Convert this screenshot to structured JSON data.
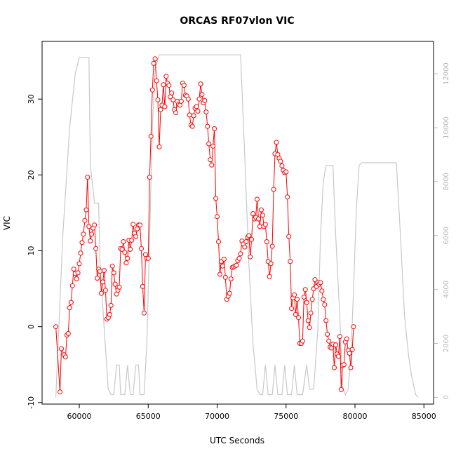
{
  "chart_data": {
    "type": "line",
    "title": "ORCAS RF07vlon VIC",
    "xlabel": "UTC Seconds",
    "ylabel": "VIC",
    "xlim": [
      57300,
      85700
    ],
    "ylim": [
      -10.2,
      37.6
    ],
    "ylim_right": [
      -250,
      13200
    ],
    "x_ticks": [
      60000,
      65000,
      70000,
      75000,
      80000,
      85000
    ],
    "y_ticks": [
      -10,
      0,
      10,
      20,
      30
    ],
    "y_ticks_right": [
      0,
      2000,
      4000,
      6000,
      8000,
      10000,
      12000
    ],
    "grid": false,
    "colors": {
      "series": "#ff0000",
      "altitude": "#c8c8c8"
    },
    "series": [
      {
        "axis": "left",
        "style": "line+circles",
        "points": [
          [
            58300,
            0.0
          ],
          [
            58600,
            -8.6
          ],
          [
            58700,
            -2.9
          ],
          [
            58900,
            -3.7
          ],
          [
            59000,
            -4.0
          ],
          [
            59100,
            -1.1
          ],
          [
            59200,
            -0.9
          ],
          [
            59300,
            2.5
          ],
          [
            59400,
            3.2
          ],
          [
            59500,
            5.4
          ],
          [
            59600,
            7.6
          ],
          [
            59700,
            7.0
          ],
          [
            59800,
            6.3
          ],
          [
            59900,
            7.1
          ],
          [
            60000,
            8.3
          ],
          [
            60100,
            9.7
          ],
          [
            60200,
            11.1
          ],
          [
            60300,
            12.2
          ],
          [
            60400,
            14.0
          ],
          [
            60500,
            15.4
          ],
          [
            60600,
            19.7
          ],
          [
            60700,
            13.2
          ],
          [
            60800,
            11.3
          ],
          [
            60900,
            12.2
          ],
          [
            61000,
            13.0
          ],
          [
            61100,
            13.4
          ],
          [
            61200,
            10.3
          ],
          [
            61300,
            6.4
          ],
          [
            61400,
            7.6
          ],
          [
            61500,
            7.3
          ],
          [
            61600,
            4.4
          ],
          [
            61700,
            5.9
          ],
          [
            61800,
            7.4
          ],
          [
            61900,
            4.8
          ],
          [
            62000,
            1.0
          ],
          [
            62100,
            1.2
          ],
          [
            62200,
            1.6
          ],
          [
            62300,
            2.8
          ],
          [
            62400,
            8.0
          ],
          [
            62500,
            7.1
          ],
          [
            62600,
            5.6
          ],
          [
            62700,
            4.3
          ],
          [
            62800,
            4.8
          ],
          [
            62900,
            5.2
          ],
          [
            63000,
            10.3
          ],
          [
            63100,
            10.2
          ],
          [
            63200,
            11.2
          ],
          [
            63300,
            9.8
          ],
          [
            63400,
            8.4
          ],
          [
            63500,
            9.0
          ],
          [
            63600,
            11.4
          ],
          [
            63700,
            10.2
          ],
          [
            63800,
            11.4
          ],
          [
            63900,
            13.5
          ],
          [
            64000,
            12.3
          ],
          [
            64100,
            11.9
          ],
          [
            64200,
            12.9
          ],
          [
            64300,
            13.4
          ],
          [
            64400,
            13.4
          ],
          [
            64500,
            10.3
          ],
          [
            64600,
            5.3
          ],
          [
            64700,
            1.8
          ],
          [
            64800,
            9.5
          ],
          [
            64900,
            9.0
          ],
          [
            65000,
            9.0
          ],
          [
            65100,
            19.7
          ],
          [
            65200,
            25.1
          ],
          [
            65300,
            31.2
          ],
          [
            65400,
            34.7
          ],
          [
            65500,
            35.3
          ],
          [
            65600,
            32.4
          ],
          [
            65700,
            29.9
          ],
          [
            65800,
            23.7
          ],
          [
            65900,
            28.6
          ],
          [
            66000,
            29.2
          ],
          [
            66100,
            31.9
          ],
          [
            66200,
            29.0
          ],
          [
            66300,
            33.0
          ],
          [
            66400,
            32.1
          ],
          [
            66500,
            31.8
          ],
          [
            66600,
            30.3
          ],
          [
            66700,
            30.8
          ],
          [
            66800,
            29.9
          ],
          [
            66900,
            28.6
          ],
          [
            67000,
            28.2
          ],
          [
            67100,
            29.7
          ],
          [
            67200,
            29.3
          ],
          [
            67300,
            29.2
          ],
          [
            67400,
            29.7
          ],
          [
            67500,
            32.1
          ],
          [
            67600,
            31.8
          ],
          [
            67700,
            30.5
          ],
          [
            67800,
            30.4
          ],
          [
            67900,
            30.0
          ],
          [
            68000,
            27.9
          ],
          [
            68100,
            26.6
          ],
          [
            68200,
            26.4
          ],
          [
            68300,
            27.8
          ],
          [
            68400,
            28.8
          ],
          [
            68500,
            29.0
          ],
          [
            68600,
            28.4
          ],
          [
            68700,
            30.0
          ],
          [
            68800,
            32.0
          ],
          [
            68900,
            30.6
          ],
          [
            69000,
            29.5
          ],
          [
            69100,
            29.8
          ],
          [
            69200,
            28.3
          ],
          [
            69300,
            26.4
          ],
          [
            69400,
            24.1
          ],
          [
            69500,
            22.0
          ],
          [
            69600,
            21.3
          ],
          [
            69700,
            23.8
          ],
          [
            69800,
            26.1
          ],
          [
            69900,
            16.9
          ],
          [
            70000,
            14.5
          ],
          [
            70100,
            11.2
          ],
          [
            70200,
            6.9
          ],
          [
            70300,
            8.6
          ],
          [
            70400,
            8.0
          ],
          [
            70500,
            8.9
          ],
          [
            70600,
            6.5
          ],
          [
            70700,
            3.6
          ],
          [
            70800,
            4.0
          ],
          [
            70900,
            4.4
          ],
          [
            71000,
            6.3
          ],
          [
            71100,
            7.8
          ],
          [
            71200,
            7.9
          ],
          [
            71300,
            8.0
          ],
          [
            71400,
            8.1
          ],
          [
            71500,
            8.7
          ],
          [
            71600,
            9.0
          ],
          [
            71700,
            9.6
          ],
          [
            71800,
            11.3
          ],
          [
            71900,
            10.9
          ],
          [
            72000,
            10.5
          ],
          [
            72100,
            11.2
          ],
          [
            72200,
            11.8
          ],
          [
            72300,
            12.0
          ],
          [
            72400,
            9.2
          ],
          [
            72500,
            11.5
          ],
          [
            72600,
            14.9
          ],
          [
            72700,
            14.2
          ],
          [
            72800,
            14.4
          ],
          [
            72900,
            16.8
          ],
          [
            73000,
            14.2
          ],
          [
            73100,
            13.2
          ],
          [
            73200,
            15.4
          ],
          [
            73300,
            14.7
          ],
          [
            73400,
            13.2
          ],
          [
            73500,
            13.5
          ],
          [
            73600,
            11.2
          ],
          [
            73700,
            8.6
          ],
          [
            73800,
            6.6
          ],
          [
            73900,
            8.3
          ],
          [
            74000,
            10.6
          ],
          [
            74100,
            18.1
          ],
          [
            74200,
            22.8
          ],
          [
            74300,
            24.3
          ],
          [
            74400,
            22.7
          ],
          [
            74500,
            22.2
          ],
          [
            74600,
            21.8
          ],
          [
            74700,
            21.2
          ],
          [
            74800,
            20.6
          ],
          [
            74900,
            20.3
          ],
          [
            75000,
            20.4
          ],
          [
            75100,
            17.1
          ],
          [
            75200,
            11.9
          ],
          [
            75300,
            8.6
          ],
          [
            75400,
            2.4
          ],
          [
            75500,
            3.8
          ],
          [
            75600,
            4.2
          ],
          [
            75700,
            1.6
          ],
          [
            75800,
            3.6
          ],
          [
            75900,
            1.2
          ],
          [
            76000,
            -2.2
          ],
          [
            76100,
            -2.2
          ],
          [
            76200,
            -1.9
          ],
          [
            76300,
            3.9
          ],
          [
            76400,
            4.9
          ],
          [
            76500,
            3.2
          ],
          [
            76600,
            0.8
          ],
          [
            76700,
            -0.1
          ],
          [
            76800,
            1.8
          ],
          [
            76900,
            3.6
          ],
          [
            77000,
            5.0
          ],
          [
            77100,
            6.2
          ],
          [
            77200,
            5.3
          ],
          [
            77300,
            5.8
          ],
          [
            77400,
            5.6
          ],
          [
            77500,
            5.8
          ],
          [
            77600,
            4.7
          ],
          [
            77700,
            3.6
          ],
          [
            77800,
            2.9
          ],
          [
            77900,
            0.8
          ],
          [
            78000,
            -1.0
          ],
          [
            78100,
            -1.9
          ],
          [
            78200,
            -2.7
          ],
          [
            78300,
            -2.8
          ],
          [
            78400,
            -2.3
          ],
          [
            78500,
            -5.4
          ],
          [
            78600,
            -2.4
          ],
          [
            78700,
            -3.6
          ],
          [
            78800,
            -3.9
          ],
          [
            78900,
            -1.3
          ],
          [
            79000,
            -8.3
          ],
          [
            79100,
            -5.1
          ],
          [
            79200,
            -5.0
          ],
          [
            79300,
            -2.0
          ],
          [
            79400,
            -1.6
          ],
          [
            79500,
            -3.1
          ],
          [
            79600,
            -3.5
          ],
          [
            79700,
            -5.4
          ],
          [
            79800,
            -3.0
          ],
          [
            79900,
            0.0
          ]
        ]
      },
      {
        "axis": "right",
        "style": "line",
        "points": [
          [
            58300,
            0
          ],
          [
            58800,
            6000
          ],
          [
            59300,
            10000
          ],
          [
            59700,
            12000
          ],
          [
            60000,
            12600
          ],
          [
            60100,
            12600
          ],
          [
            60700,
            12600
          ],
          [
            60800,
            8600
          ],
          [
            61100,
            7200
          ],
          [
            61400,
            7200
          ],
          [
            61500,
            5000
          ],
          [
            61800,
            2600
          ],
          [
            62100,
            300
          ],
          [
            62300,
            100
          ],
          [
            62500,
            100
          ],
          [
            62700,
            1200
          ],
          [
            62900,
            1200
          ],
          [
            63000,
            100
          ],
          [
            63300,
            100
          ],
          [
            63500,
            1200
          ],
          [
            63700,
            100
          ],
          [
            63900,
            100
          ],
          [
            64100,
            1200
          ],
          [
            64300,
            1200
          ],
          [
            64400,
            100
          ],
          [
            64700,
            100
          ],
          [
            64900,
            2000
          ],
          [
            65100,
            6000
          ],
          [
            65300,
            10000
          ],
          [
            65500,
            12200
          ],
          [
            65800,
            12700
          ],
          [
            66100,
            12700
          ],
          [
            68000,
            12700
          ],
          [
            71400,
            12700
          ],
          [
            71700,
            12700
          ],
          [
            72000,
            9000
          ],
          [
            72300,
            5000
          ],
          [
            72600,
            2000
          ],
          [
            72900,
            300
          ],
          [
            73100,
            100
          ],
          [
            73300,
            100
          ],
          [
            73500,
            1200
          ],
          [
            73700,
            100
          ],
          [
            74000,
            100
          ],
          [
            74200,
            1200
          ],
          [
            74400,
            100
          ],
          [
            74700,
            100
          ],
          [
            74900,
            1200
          ],
          [
            75100,
            100
          ],
          [
            75400,
            100
          ],
          [
            75600,
            1200
          ],
          [
            75800,
            100
          ],
          [
            76200,
            100
          ],
          [
            76500,
            1200
          ],
          [
            76700,
            300
          ],
          [
            77000,
            300
          ],
          [
            77300,
            2500
          ],
          [
            77500,
            6000
          ],
          [
            77700,
            8000
          ],
          [
            77900,
            8600
          ],
          [
            78400,
            8600
          ],
          [
            78600,
            6000
          ],
          [
            78900,
            3000
          ],
          [
            79100,
            400
          ],
          [
            79300,
            100
          ],
          [
            79500,
            300
          ],
          [
            79700,
            1500
          ],
          [
            79900,
            4000
          ],
          [
            80100,
            7000
          ],
          [
            80300,
            8600
          ],
          [
            80500,
            8700
          ],
          [
            82500,
            8700
          ],
          [
            83000,
            8700
          ],
          [
            83300,
            6000
          ],
          [
            83600,
            3000
          ],
          [
            83900,
            1500
          ],
          [
            84100,
            800
          ],
          [
            84400,
            100
          ],
          [
            84600,
            0
          ]
        ]
      }
    ]
  }
}
